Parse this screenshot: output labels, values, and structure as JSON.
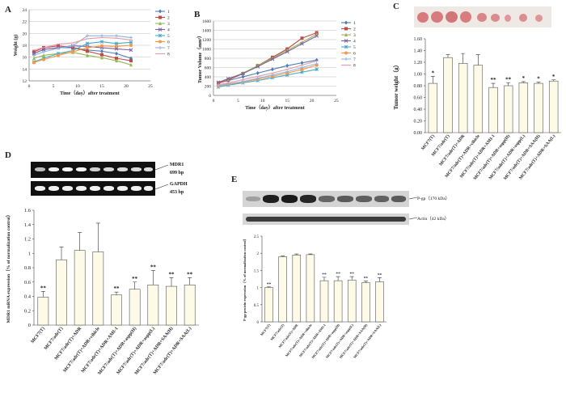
{
  "panels": {
    "A": {
      "letter": "A"
    },
    "B": {
      "letter": "B"
    },
    "C": {
      "letter": "C"
    },
    "D": {
      "letter": "D",
      "blot_labels": {
        "mdr1": "MDR1",
        "mdr1_bp": "699 bp",
        "gapdh": "GAPDH",
        "gapdh_bp": "453 bp"
      }
    },
    "E": {
      "letter": "E",
      "blot_labels": {
        "pgp": "P-gp（170 kDa）",
        "actin": "Actin（42 kDa）"
      }
    }
  },
  "colors": {
    "s1": "#4a7ebb",
    "s2": "#be4b48",
    "s3": "#98b954",
    "s4": "#7d60a0",
    "s5": "#46aac5",
    "s6": "#f79646",
    "s7": "#8fb4e0",
    "s8": "#e59ba4",
    "bar_fill": "#fdfbe8",
    "bar_stroke": "#555555",
    "blot_bg": "#101010",
    "band": "#f4f4f4",
    "tumor": "#d97c7c"
  },
  "chart_data": [
    {
      "id": "A",
      "type": "line",
      "xlabel": "Time（day）after treatment",
      "ylabel": "Weight (g)",
      "xlim": [
        0,
        25
      ],
      "ylim": [
        12,
        24
      ],
      "xticks": [
        "0",
        "5",
        "10",
        "15",
        "20",
        "25"
      ],
      "yticks": [
        "12",
        "14",
        "16",
        "18",
        "20",
        "22",
        "24"
      ],
      "legend_position": "right",
      "x": [
        1,
        3,
        6,
        9,
        12,
        15,
        18,
        21
      ],
      "series": [
        {
          "name": "1",
          "values": [
            16.6,
            17.3,
            17.6,
            17.6,
            17.2,
            17.0,
            16.6,
            15.8
          ]
        },
        {
          "name": "2",
          "values": [
            16.9,
            17.6,
            17.9,
            17.6,
            17.0,
            16.4,
            15.8,
            15.4
          ]
        },
        {
          "name": "3",
          "values": [
            15.8,
            16.3,
            16.6,
            16.8,
            16.3,
            15.9,
            15.4,
            14.7
          ]
        },
        {
          "name": "4",
          "values": [
            16.6,
            17.3,
            17.6,
            17.9,
            17.8,
            17.6,
            17.4,
            17.2
          ]
        },
        {
          "name": "5",
          "values": [
            15.2,
            15.8,
            16.6,
            17.1,
            18.3,
            18.6,
            18.3,
            18.5
          ]
        },
        {
          "name": "6",
          "values": [
            15.1,
            15.6,
            16.3,
            16.9,
            17.6,
            17.9,
            17.8,
            18.0
          ]
        },
        {
          "name": "7",
          "values": [
            16.3,
            16.9,
            17.5,
            17.9,
            19.6,
            19.6,
            19.6,
            19.3
          ]
        },
        {
          "name": "8",
          "values": [
            17.2,
            17.6,
            18.2,
            18.4,
            19.1,
            19.3,
            19.2,
            18.9
          ]
        }
      ]
    },
    {
      "id": "B",
      "type": "line",
      "xlabel": "Time（day）after treatment",
      "ylabel": "Tumor Volume（mm³）",
      "xlim": [
        0,
        25
      ],
      "ylim": [
        0,
        1600
      ],
      "xticks": [
        "0",
        "5",
        "10",
        "15",
        "20",
        "25"
      ],
      "yticks": [
        "0",
        "200",
        "400",
        "600",
        "800",
        "1000",
        "1200",
        "1400",
        "1600"
      ],
      "legend_position": "right",
      "x": [
        1,
        3,
        6,
        9,
        12,
        15,
        18,
        21
      ],
      "series": [
        {
          "name": "1",
          "values": [
            270,
            320,
            400,
            480,
            560,
            640,
            700,
            760
          ]
        },
        {
          "name": "2",
          "values": [
            260,
            330,
            470,
            640,
            820,
            1000,
            1230,
            1350
          ]
        },
        {
          "name": "3",
          "values": [
            280,
            350,
            480,
            640,
            800,
            970,
            1140,
            1320
          ]
        },
        {
          "name": "4",
          "values": [
            280,
            360,
            470,
            620,
            780,
            940,
            1110,
            1280
          ]
        },
        {
          "name": "5",
          "values": [
            180,
            220,
            270,
            320,
            380,
            440,
            500,
            560
          ]
        },
        {
          "name": "6",
          "values": [
            200,
            240,
            290,
            350,
            410,
            480,
            560,
            650
          ]
        },
        {
          "name": "7",
          "values": [
            210,
            250,
            300,
            370,
            440,
            510,
            600,
            680
          ]
        },
        {
          "name": "8",
          "values": [
            230,
            270,
            340,
            410,
            480,
            560,
            650,
            740
          ]
        }
      ]
    },
    {
      "id": "C",
      "type": "bar",
      "ylabel": "Tumor weight（g）",
      "ylim": [
        0,
        1.6
      ],
      "yticks": [
        "0.00",
        "0.20",
        "0.40",
        "0.60",
        "0.80",
        "1.00",
        "1.20",
        "1.40",
        "1.60"
      ],
      "categories": [
        "MCF7(T)",
        "MCF7/adr(T)",
        "MCF7/adr(T)+ADR",
        "MCF7/adr(T)+ADR+vihicle",
        "MCF7/adr(T)+ADR+AMI-1",
        "MCF7/adr(T)+ADR+aspp(H)",
        "MCF7/adr(T)+ADR+aspp(L)",
        "MCF7/adr(T)+ADR+SAA(H)",
        "MCF7/adr(T)+ADR+SAA(L)"
      ],
      "values": [
        0.84,
        1.28,
        1.18,
        1.15,
        0.77,
        0.8,
        0.85,
        0.84,
        0.88
      ],
      "errors": [
        0.12,
        0.05,
        0.17,
        0.18,
        0.07,
        0.05,
        0.02,
        0.02,
        0.02
      ],
      "significance": [
        "*",
        "",
        "",
        "",
        "**",
        "**",
        "*",
        "*",
        "*"
      ]
    },
    {
      "id": "D",
      "type": "bar",
      "ylabel": "MDR1 mRNA expression（% of normalization control）",
      "ylim": [
        0,
        1.6
      ],
      "yticks": [
        "0",
        "0.2",
        "0.4",
        "0.6",
        "0.8",
        "1",
        "1.2",
        "1.4",
        "1.6"
      ],
      "categories": [
        "MCF7(T)",
        "MCF7/adr(T)",
        "MCF7/adr(T)+ADR",
        "MCF7/adr(T)+ADR+vihicle",
        "MCF7/adr(T)+ADR+AMI-1",
        "MCF7/adr(T)+ADR+aspp(H)",
        "MCF7/adr(T)+ADR+aspp(L)",
        "MCF7/adr(T)+ADR+SAA(H)",
        "MCF7/adr(T)+ADR+SAA(L)"
      ],
      "values": [
        0.39,
        0.91,
        1.04,
        1.02,
        0.42,
        0.5,
        0.56,
        0.54,
        0.56
      ],
      "errors": [
        0.08,
        0.18,
        0.25,
        0.4,
        0.04,
        0.1,
        0.2,
        0.12,
        0.1
      ],
      "significance": [
        "**",
        "",
        "",
        "",
        "**",
        "**",
        "**",
        "**",
        "**"
      ]
    },
    {
      "id": "E",
      "type": "bar",
      "ylabel": "P-gp protein expression（% of normalization control）",
      "ylim": [
        0,
        2.5
      ],
      "yticks": [
        "0",
        "0.5",
        "1",
        "1.5",
        "2",
        "2.5"
      ],
      "categories": [
        "MCF7(T)",
        "MCF7/adr(T)",
        "MCF7/adr(T)+ADR",
        "MCF7/adr(T)+ADR+vihicle",
        "MCF7/adr(T)+ADR+AMI-1",
        "MCF7/adr(T)+ADR+aspp(H)",
        "MCF7/adr(T)+ADR+aspp(L)",
        "MCF7/adr(T)+ADR+SAA(H)",
        "MCF7/adr(T)+ADR+SAA(L)"
      ],
      "values": [
        1.0,
        1.9,
        1.95,
        1.96,
        1.2,
        1.2,
        1.22,
        1.14,
        1.17
      ],
      "errors": [
        0.02,
        0.02,
        0.03,
        0.02,
        0.1,
        0.12,
        0.1,
        0.05,
        0.12
      ],
      "significance": [
        "**",
        "",
        "",
        "",
        "**",
        "**",
        "**",
        "**",
        "**"
      ]
    }
  ]
}
